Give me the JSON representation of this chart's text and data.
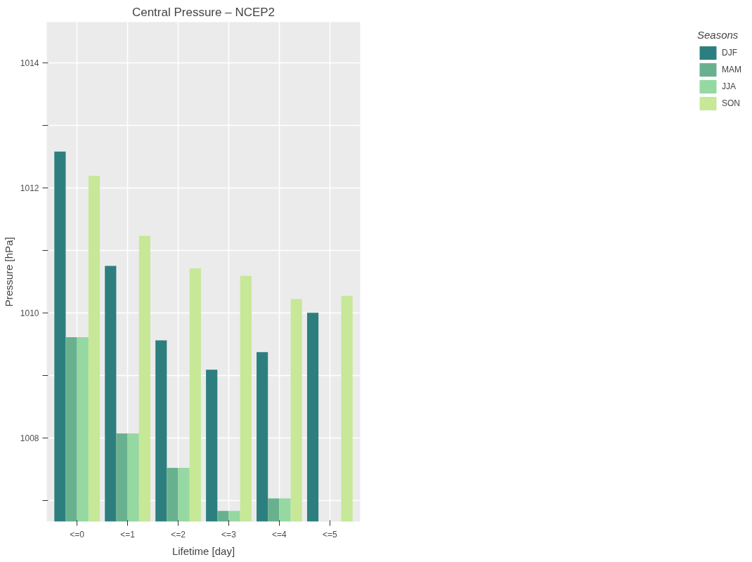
{
  "chart_data": {
    "type": "bar",
    "title": "Central Pressure – NCEP2",
    "xlabel": "Lifetime [day]",
    "ylabel": "Pressure [hPa]",
    "legend_title": "Seasons",
    "categories": [
      "<=0",
      "<=1",
      "<=2",
      "<=3",
      "<=4",
      "<=5"
    ],
    "series": [
      {
        "name": "DJF",
        "color": "#2d7f7f",
        "values": [
          1012.58,
          1010.75,
          1009.56,
          1009.09,
          1009.37,
          1010.0
        ]
      },
      {
        "name": "MAM",
        "color": "#69b18e",
        "values": [
          1009.61,
          1008.07,
          1007.52,
          1006.83,
          1007.03,
          null
        ]
      },
      {
        "name": "JJA",
        "color": "#95d8a2",
        "values": [
          1009.61,
          1008.07,
          1007.52,
          1006.83,
          1007.03,
          null
        ]
      },
      {
        "name": "SON",
        "color": "#c6e897",
        "values": [
          1012.19,
          1011.23,
          1010.71,
          1010.59,
          1010.22,
          1010.27
        ]
      }
    ],
    "ylim": [
      1006.66,
      1014.65
    ],
    "yticks": [
      {
        "value": 1007,
        "label": null
      },
      1008,
      {
        "value": 1009,
        "label": null
      },
      1010,
      {
        "value": 1011,
        "label": null
      },
      1012,
      {
        "value": 1013,
        "label": null
      },
      1014
    ],
    "grid": true,
    "legend": "right"
  }
}
